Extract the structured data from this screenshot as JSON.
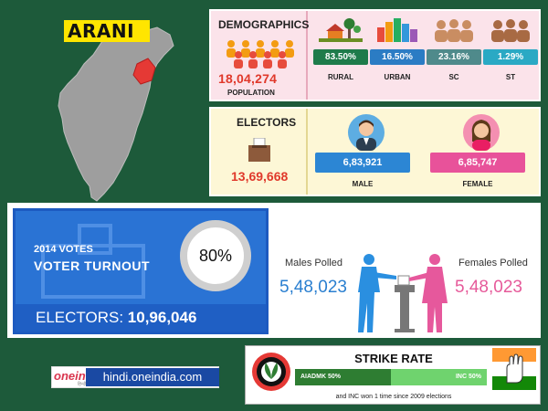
{
  "region": {
    "name": "ARANI"
  },
  "demographics": {
    "title": "DEMOGRAPHICS",
    "population": "18,04,274",
    "population_label": "POPULATION",
    "stats": [
      {
        "label": "RURAL",
        "value": "83.50%",
        "color": "#1e7b4a"
      },
      {
        "label": "URBAN",
        "value": "16.50%",
        "color": "#2b7cc4"
      },
      {
        "label": "SC",
        "value": "23.16%",
        "color": "#4f8a8b"
      },
      {
        "label": "ST",
        "value": "1.29%",
        "color": "#2aa9c4"
      }
    ]
  },
  "electors": {
    "title": "ELECTORS",
    "total": "13,69,668",
    "male_value": "6,83,921",
    "male_label": "MALE",
    "male_color": "#2c86d4",
    "female_value": "6,85,747",
    "female_label": "FEMALE",
    "female_color": "#e8529a"
  },
  "turnout": {
    "year_label": "2014 VOTES",
    "title": "VOTER TURNOUT",
    "percent": "80%",
    "electors_label": "ELECTORS:",
    "electors_value": "10,96,046",
    "males_polled_label": "Males Polled",
    "males_polled_value": "5,48,023",
    "females_polled_label": "Females Polled",
    "females_polled_value": "5,48,023"
  },
  "brand": {
    "logo_text": "oneindia",
    "logo_sub": "हिन्दी",
    "url": "hindi.oneindia.com"
  },
  "strike_rate": {
    "title": "STRIKE RATE",
    "left_label": "AIADMK 50%",
    "right_label": "INC 50%",
    "left_share": 0.5,
    "right_share": 0.5,
    "note": "and INC won 1 time since 2009 elections"
  }
}
